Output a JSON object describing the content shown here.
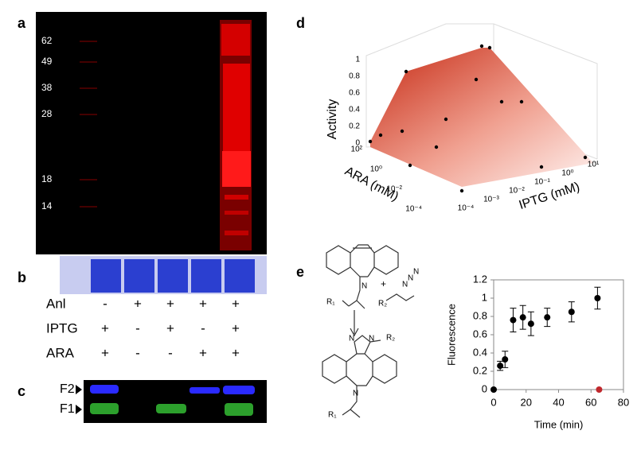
{
  "panels": {
    "a": "a",
    "b": "b",
    "c": "c",
    "d": "d",
    "e": "e"
  },
  "gel": {
    "markers": [
      "62",
      "49",
      "38",
      "28",
      "18",
      "14"
    ]
  },
  "conditions": {
    "rows": [
      {
        "label": "Anl",
        "cells": [
          "-",
          "+",
          "+",
          "+",
          "+"
        ]
      },
      {
        "label": "IPTG",
        "cells": [
          "+",
          "-",
          "+",
          "-",
          "+"
        ]
      },
      {
        "label": "ARA",
        "cells": [
          "+",
          "-",
          "-",
          "+",
          "+"
        ]
      }
    ]
  },
  "fluor_gel": {
    "bands": [
      "F2",
      "F1"
    ]
  },
  "surface": {
    "z_label": "Activity",
    "x_label": "ARA (mM)",
    "y_label": "IPTG (mM)",
    "zticks": [
      "1",
      "0.8",
      "0.6",
      "0.4",
      "0.2",
      "0"
    ],
    "xticks": [
      "10²",
      "10⁰",
      "10⁻²",
      "10⁻⁴"
    ],
    "yticks": [
      "10⁻⁴",
      "10⁻³",
      "10⁻²",
      "10⁻¹",
      "10⁰",
      "10¹"
    ]
  },
  "chem": {
    "atoms": [
      "N",
      "N",
      "N",
      "N",
      "N",
      "N",
      "N"
    ],
    "groups": [
      "R₁",
      "R₂",
      "R₂",
      "R₁"
    ],
    "plus": "+"
  },
  "chart_data": {
    "type": "scatter",
    "x_label": "Time (min)",
    "y_label": "Fluorescence",
    "xlim": [
      0,
      80
    ],
    "xticks": [
      0,
      20,
      40,
      60,
      80
    ],
    "ylim": [
      0,
      1.2
    ],
    "yticks": [
      0,
      0.2,
      0.4,
      0.6,
      0.8,
      1,
      1.2
    ],
    "series": [
      {
        "color": "#000000",
        "x": [
          0,
          4,
          7,
          12,
          18,
          23,
          33,
          48,
          64
        ],
        "values": [
          0,
          0.26,
          0.33,
          0.76,
          0.79,
          0.72,
          0.79,
          0.85,
          1.0
        ],
        "errors": [
          0,
          0.05,
          0.09,
          0.13,
          0.13,
          0.13,
          0.1,
          0.11,
          0.12
        ]
      },
      {
        "color": "#c0282d",
        "x": [
          65
        ],
        "values": [
          0
        ]
      }
    ]
  }
}
